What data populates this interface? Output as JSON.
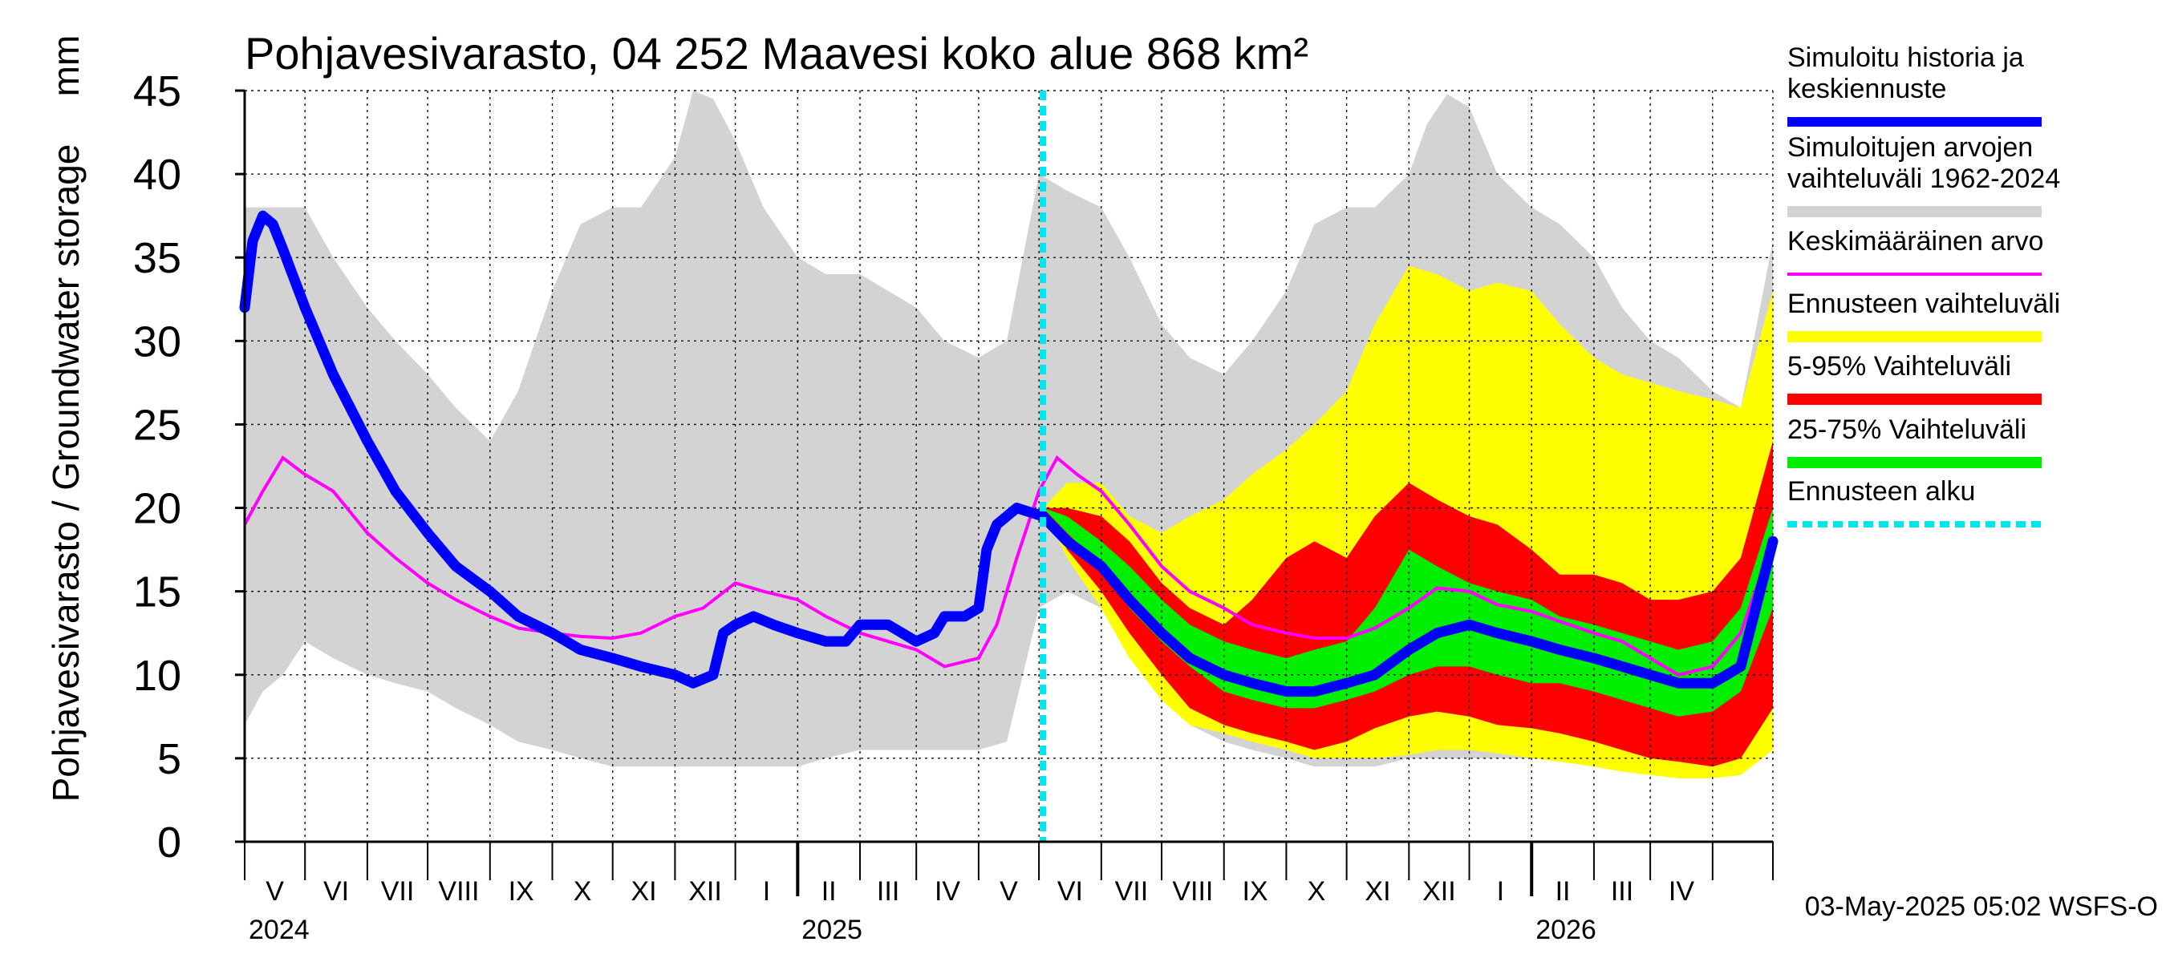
{
  "chart_data": {
    "type": "area",
    "title": "Pohjavesivarasto, 04 252 Maavesi koko alue 868 km²",
    "ylabel": "Pohjavesivarasto / Groundwater storage",
    "yunit": "mm",
    "ylim": [
      0,
      45
    ],
    "yticks": [
      0,
      5,
      10,
      15,
      20,
      25,
      30,
      35,
      40,
      45
    ],
    "xlim": [
      "2024-04-01",
      "2026-05-01"
    ],
    "x_month_ticks": [
      "2024-04-01",
      "2024-05-01",
      "2024-06-01",
      "2024-07-01",
      "2024-08-01",
      "2024-09-01",
      "2024-10-01",
      "2024-11-01",
      "2024-12-01",
      "2025-01-01",
      "2025-02-01",
      "2025-03-01",
      "2025-04-01",
      "2025-05-01",
      "2025-06-01",
      "2025-07-01",
      "2025-08-01",
      "2025-09-01",
      "2025-10-01",
      "2025-11-01",
      "2025-12-01",
      "2026-01-01",
      "2026-02-01",
      "2026-03-01",
      "2026-04-01",
      "2026-05-01"
    ],
    "x_month_labels": [
      "V",
      "VI",
      "VII",
      "VIII",
      "IX",
      "X",
      "XI",
      "XII",
      "I",
      "II",
      "III",
      "IV",
      "V",
      "VI",
      "VII",
      "VIII",
      "IX",
      "X",
      "XI",
      "XII",
      "I",
      "II",
      "III",
      "IV"
    ],
    "x_year_labels": [
      {
        "date": "2024-04-01",
        "label": "2024"
      },
      {
        "date": "2025-01-01",
        "label": "2025"
      },
      {
        "date": "2026-01-01",
        "label": "2026"
      }
    ],
    "forecast_start": "2025-05-03",
    "timestamp": "03-May-2025 05:02 WSFS-O",
    "grid": true,
    "legend_position": "right",
    "legend": [
      {
        "key": "history",
        "lines": [
          "Simuloitu historia ja",
          "keskiennuste"
        ],
        "color": "#0000ff",
        "style": "thick-line"
      },
      {
        "key": "range",
        "lines": [
          "Simuloitujen arvojen",
          "vaihteluväli 1962-2024"
        ],
        "color": "#d3d3d3",
        "style": "band"
      },
      {
        "key": "mean",
        "lines": [
          "Keskimääräinen arvo"
        ],
        "color": "#ff00ff",
        "style": "thin-line"
      },
      {
        "key": "fc_range",
        "lines": [
          "Ennusteen vaihteluväli"
        ],
        "color": "#ffff00",
        "style": "band"
      },
      {
        "key": "p5_95",
        "lines": [
          "5-95% Vaihteluväli"
        ],
        "color": "#ff0000",
        "style": "band"
      },
      {
        "key": "p25_75",
        "lines": [
          "25-75% Vaihteluväli"
        ],
        "color": "#00ee00",
        "style": "band"
      },
      {
        "key": "fc_start",
        "lines": [
          "Ennusteen alku"
        ],
        "color": "#00e5ee",
        "style": "dashed-line"
      }
    ],
    "colors": {
      "history": "#0000ff",
      "range": "#d3d3d3",
      "mean": "#ff00ff",
      "fc_range": "#ffff00",
      "p5_95": "#ff0000",
      "p25_75": "#00ee00",
      "fc_start": "#00e5ee"
    },
    "series": {
      "hist_range": {
        "x": [
          "2024-04-01",
          "2024-04-10",
          "2024-04-20",
          "2024-05-01",
          "2024-05-15",
          "2024-06-01",
          "2024-06-15",
          "2024-07-01",
          "2024-07-15",
          "2024-08-01",
          "2024-08-15",
          "2024-09-01",
          "2024-09-15",
          "2024-10-01",
          "2024-10-15",
          "2024-11-01",
          "2024-11-10",
          "2024-11-20",
          "2024-12-01",
          "2024-12-15",
          "2025-01-01",
          "2025-01-15",
          "2025-02-01",
          "2025-02-15",
          "2025-03-01",
          "2025-03-15",
          "2025-04-01",
          "2025-04-15",
          "2025-05-01",
          "2025-05-15",
          "2025-06-01",
          "2025-06-15",
          "2025-07-01",
          "2025-07-15",
          "2025-08-01",
          "2025-08-15",
          "2025-09-01",
          "2025-09-15",
          "2025-10-01",
          "2025-10-15",
          "2025-11-01",
          "2025-11-10",
          "2025-11-20",
          "2025-12-01",
          "2025-12-15",
          "2026-01-01",
          "2026-01-15",
          "2026-02-01",
          "2026-02-15",
          "2026-03-01",
          "2026-03-15",
          "2026-04-01",
          "2026-04-15",
          "2026-05-01"
        ],
        "low": [
          7,
          9,
          10,
          12,
          11,
          10,
          9.5,
          9,
          8,
          7,
          6,
          5.5,
          5,
          4.5,
          4.5,
          4.5,
          4.5,
          4.5,
          4.5,
          4.5,
          4.5,
          5,
          5.5,
          5.5,
          5.5,
          5.5,
          5.5,
          6,
          14,
          15,
          14,
          11,
          9,
          7,
          6,
          5.5,
          5,
          4.5,
          4.5,
          4.5,
          5,
          5,
          5,
          5,
          5,
          5,
          5,
          5,
          4.5,
          4,
          4,
          4,
          4.5,
          5.5
        ],
        "high": [
          38,
          38,
          38,
          38,
          35,
          32,
          30,
          28,
          26,
          24,
          27,
          33,
          37,
          38,
          38,
          41,
          45,
          44.5,
          42,
          38,
          35,
          34,
          34,
          33,
          32,
          30,
          29,
          30,
          40,
          39,
          38,
          35,
          31,
          29,
          28,
          30,
          33,
          37,
          38,
          38,
          40,
          43,
          44.8,
          44,
          40,
          38,
          37,
          35,
          32,
          30,
          29,
          27,
          26,
          36
        ]
      },
      "history": {
        "x": [
          "2024-04-01",
          "2024-04-05",
          "2024-04-10",
          "2024-04-15",
          "2024-04-20",
          "2024-05-01",
          "2024-05-15",
          "2024-06-01",
          "2024-06-15",
          "2024-07-01",
          "2024-07-15",
          "2024-08-01",
          "2024-08-15",
          "2024-09-01",
          "2024-09-15",
          "2024-10-01",
          "2024-10-15",
          "2024-11-01",
          "2024-11-10",
          "2024-11-20",
          "2024-11-25",
          "2024-12-01",
          "2024-12-10",
          "2024-12-20",
          "2025-01-01",
          "2025-01-15",
          "2025-01-25",
          "2025-02-01",
          "2025-02-15",
          "2025-03-01",
          "2025-03-10",
          "2025-03-15",
          "2025-03-25",
          "2025-04-01",
          "2025-04-05",
          "2025-04-10",
          "2025-04-20",
          "2025-05-03"
        ],
        "y": [
          32,
          36,
          37.5,
          37,
          35.5,
          32,
          28,
          24,
          21,
          18.5,
          16.5,
          15,
          13.5,
          12.5,
          11.5,
          11,
          10.5,
          10,
          9.5,
          10,
          12.5,
          13,
          13.5,
          13,
          12.5,
          12,
          12,
          13,
          13,
          12,
          12.5,
          13.5,
          13.5,
          14,
          17.5,
          19,
          20,
          19.5
        ]
      },
      "mean": {
        "x": [
          "2024-04-01",
          "2024-04-10",
          "2024-04-20",
          "2024-05-01",
          "2024-05-15",
          "2024-06-01",
          "2024-06-15",
          "2024-07-01",
          "2024-07-15",
          "2024-08-01",
          "2024-08-15",
          "2024-09-01",
          "2024-09-15",
          "2024-10-01",
          "2024-10-15",
          "2024-11-01",
          "2024-11-15",
          "2024-12-01",
          "2024-12-15",
          "2025-01-01",
          "2025-01-15",
          "2025-02-01",
          "2025-02-15",
          "2025-03-01",
          "2025-03-15",
          "2025-04-01",
          "2025-04-10",
          "2025-04-20",
          "2025-05-01",
          "2025-05-10",
          "2025-05-20",
          "2025-06-01",
          "2025-06-15",
          "2025-07-01",
          "2025-07-15",
          "2025-08-01",
          "2025-08-15",
          "2025-09-01",
          "2025-09-15",
          "2025-10-01",
          "2025-10-15",
          "2025-11-01",
          "2025-11-15",
          "2025-12-01",
          "2025-12-15",
          "2026-01-01",
          "2026-01-15",
          "2026-02-01",
          "2026-02-15",
          "2026-03-01",
          "2026-03-15",
          "2026-04-01",
          "2026-04-15",
          "2026-05-01"
        ],
        "y": [
          19,
          21,
          23,
          22,
          21,
          18.5,
          17,
          15.5,
          14.5,
          13.5,
          12.8,
          12.5,
          12.3,
          12.2,
          12.5,
          13.5,
          14,
          15.5,
          15,
          14.5,
          13.5,
          12.5,
          12,
          11.5,
          10.5,
          11,
          13,
          17,
          21,
          23,
          22,
          21,
          19,
          16.5,
          15,
          14,
          13,
          12.5,
          12.2,
          12.2,
          12.8,
          14,
          15.2,
          15,
          14.2,
          13.8,
          13.2,
          12.5,
          12,
          11,
          10,
          10.5,
          12.5,
          18
        ]
      },
      "fc_range": {
        "x": [
          "2025-05-03",
          "2025-05-15",
          "2025-06-01",
          "2025-06-15",
          "2025-07-01",
          "2025-07-15",
          "2025-08-01",
          "2025-08-15",
          "2025-09-01",
          "2025-09-15",
          "2025-10-01",
          "2025-10-15",
          "2025-11-01",
          "2025-11-15",
          "2025-12-01",
          "2025-12-15",
          "2026-01-01",
          "2026-01-15",
          "2026-02-01",
          "2026-02-15",
          "2026-03-01",
          "2026-03-15",
          "2026-04-01",
          "2026-04-15",
          "2026-05-01"
        ],
        "low": [
          20,
          17,
          14,
          11,
          8.5,
          7,
          6.5,
          6,
          5.5,
          5,
          5,
          5,
          5.2,
          5.5,
          5.5,
          5.3,
          5,
          4.8,
          4.5,
          4.2,
          4,
          3.8,
          3.8,
          4,
          5.5
        ],
        "high": [
          20,
          21.5,
          21.5,
          19.5,
          18.5,
          19.5,
          20.5,
          22,
          23.5,
          25,
          27,
          31,
          34.5,
          34,
          33,
          33.5,
          33,
          31,
          29,
          28,
          27.5,
          27,
          26.5,
          26,
          33
        ]
      },
      "p5_95": {
        "x": [
          "2025-05-03",
          "2025-05-15",
          "2025-06-01",
          "2025-06-15",
          "2025-07-01",
          "2025-07-15",
          "2025-08-01",
          "2025-08-15",
          "2025-09-01",
          "2025-09-15",
          "2025-10-01",
          "2025-10-15",
          "2025-11-01",
          "2025-11-15",
          "2025-12-01",
          "2025-12-15",
          "2026-01-01",
          "2026-01-15",
          "2026-02-01",
          "2026-02-15",
          "2026-03-01",
          "2026-03-15",
          "2026-04-01",
          "2026-04-15",
          "2026-05-01"
        ],
        "low": [
          20,
          17.5,
          15,
          12.5,
          10,
          8,
          7,
          6.5,
          6,
          5.5,
          6,
          6.8,
          7.5,
          7.8,
          7.5,
          7,
          6.8,
          6.5,
          6,
          5.5,
          5,
          4.8,
          4.5,
          5,
          8
        ],
        "high": [
          20,
          20,
          19.5,
          18,
          15.5,
          14,
          13,
          14.5,
          17,
          18,
          17,
          19.5,
          21.5,
          20.5,
          19.5,
          19,
          17.5,
          16,
          16,
          15.5,
          14.5,
          14.5,
          15,
          17,
          24
        ]
      },
      "p25_75": {
        "x": [
          "2025-05-03",
          "2025-05-15",
          "2025-06-01",
          "2025-06-15",
          "2025-07-01",
          "2025-07-15",
          "2025-08-01",
          "2025-08-15",
          "2025-09-01",
          "2025-09-15",
          "2025-10-01",
          "2025-10-15",
          "2025-11-01",
          "2025-11-15",
          "2025-12-01",
          "2025-12-15",
          "2026-01-01",
          "2026-01-15",
          "2026-02-01",
          "2026-02-15",
          "2026-03-01",
          "2026-03-15",
          "2026-04-01",
          "2026-04-15",
          "2026-05-01"
        ],
        "low": [
          20,
          18.5,
          16.5,
          14,
          12,
          10.5,
          9,
          8.5,
          8,
          8,
          8.5,
          9,
          10,
          10.5,
          10.5,
          10,
          9.5,
          9.5,
          9,
          8.5,
          8,
          7.5,
          7.8,
          9,
          14
        ],
        "high": [
          20,
          19.5,
          18,
          16.5,
          14.5,
          13,
          12,
          11.5,
          11,
          11.5,
          12,
          14,
          17.5,
          16.5,
          15.5,
          15,
          14.5,
          13.5,
          13,
          12.5,
          12,
          11.5,
          12,
          14,
          20
        ]
      },
      "forecast_median": {
        "x": [
          "2025-05-03",
          "2025-05-15",
          "2025-06-01",
          "2025-06-15",
          "2025-07-01",
          "2025-07-15",
          "2025-08-01",
          "2025-08-15",
          "2025-09-01",
          "2025-09-15",
          "2025-10-01",
          "2025-10-15",
          "2025-11-01",
          "2025-11-15",
          "2025-12-01",
          "2025-12-15",
          "2026-01-01",
          "2026-01-15",
          "2026-02-01",
          "2026-02-15",
          "2026-03-01",
          "2026-03-15",
          "2026-04-01",
          "2026-04-15",
          "2026-05-01"
        ],
        "y": [
          19.5,
          18,
          16.5,
          14.5,
          12.5,
          11,
          10,
          9.5,
          9,
          9,
          9.5,
          10,
          11.5,
          12.5,
          13,
          12.5,
          12,
          11.5,
          11,
          10.5,
          10,
          9.5,
          9.5,
          10.5,
          18
        ]
      }
    }
  }
}
